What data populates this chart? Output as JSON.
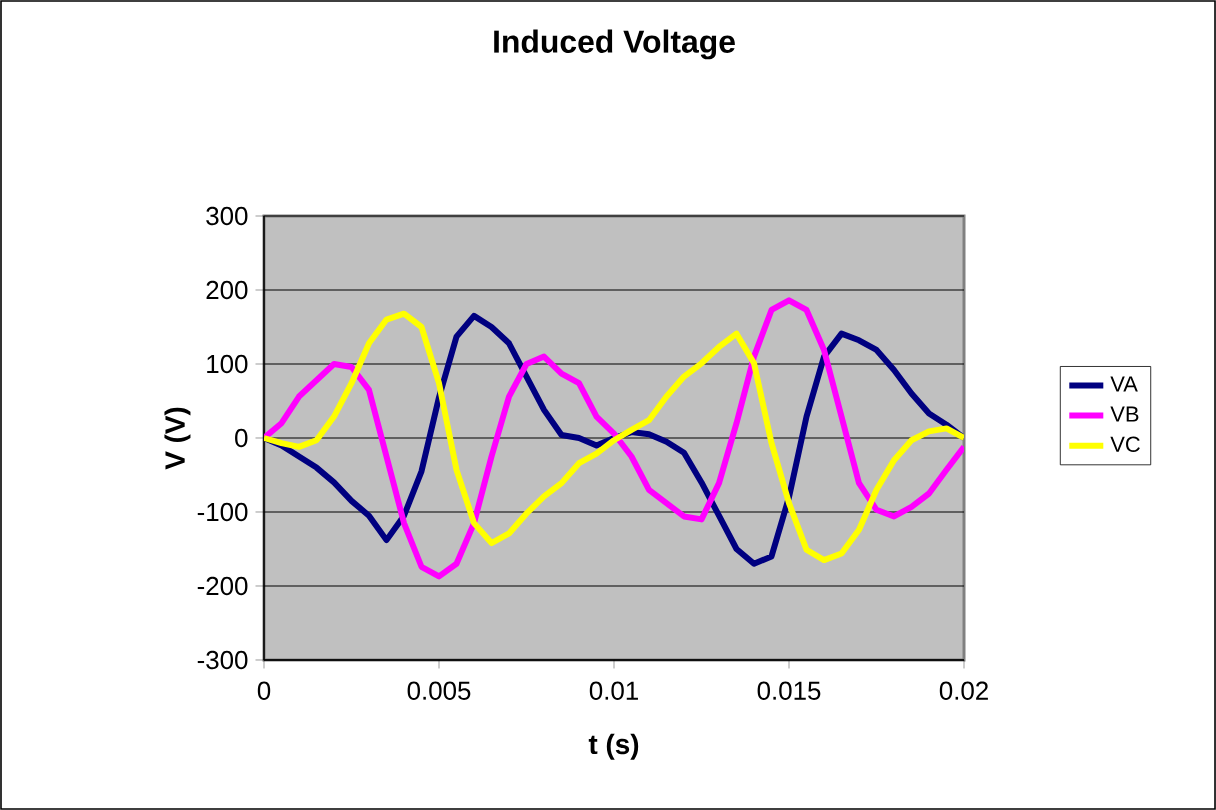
{
  "chart_data": {
    "type": "line",
    "title": "Induced Voltage",
    "xlabel": "t (s)",
    "ylabel": "V (V)",
    "x": [
      0,
      0.0005,
      0.001,
      0.0015,
      0.002,
      0.0025,
      0.003,
      0.0035,
      0.004,
      0.0045,
      0.005,
      0.0055,
      0.006,
      0.0065,
      0.007,
      0.0075,
      0.008,
      0.0085,
      0.009,
      0.0095,
      0.01,
      0.0105,
      0.011,
      0.0115,
      0.012,
      0.0125,
      0.013,
      0.0135,
      0.014,
      0.0145,
      0.015,
      0.0155,
      0.016,
      0.0165,
      0.017,
      0.0175,
      0.018,
      0.0185,
      0.019,
      0.0195,
      0.02
    ],
    "series": [
      {
        "name": "VA",
        "color": "#000080",
        "values": [
          0,
          -10,
          -25,
          -40,
          -60,
          -85,
          -105,
          -138,
          -105,
          -45,
          55,
          137,
          165,
          150,
          128,
          83,
          38,
          4,
          0,
          -10,
          0,
          8,
          5,
          -5,
          -20,
          -60,
          -105,
          -150,
          -170,
          -160,
          -80,
          29,
          110,
          141,
          132,
          119,
          92,
          60,
          33,
          18,
          0
        ]
      },
      {
        "name": "VB",
        "color": "#ff00ff",
        "values": [
          0,
          20,
          56,
          78,
          100,
          96,
          65,
          -25,
          -115,
          -174,
          -187,
          -170,
          -115,
          -25,
          56,
          100,
          110,
          87,
          74,
          29,
          6,
          -25,
          -70,
          -88,
          -106,
          -110,
          -61,
          20,
          110,
          173,
          186,
          173,
          119,
          29,
          -61,
          -97,
          -106,
          -93,
          -75,
          -43,
          -12
        ]
      },
      {
        "name": "VC",
        "color": "#ffff00",
        "values": [
          0,
          -7,
          -12,
          -3,
          29,
          74,
          128,
          160,
          168,
          150,
          74,
          -43,
          -115,
          -142,
          -129,
          -102,
          -79,
          -61,
          -34,
          -21,
          -3,
          11,
          24,
          56,
          83,
          101,
          123,
          141,
          101,
          -7,
          -88,
          -151,
          -165,
          -156,
          -124,
          -70,
          -30,
          -3,
          9,
          13,
          0
        ]
      }
    ],
    "xlim": [
      0,
      0.02
    ],
    "xticks": [
      0,
      0.005,
      0.01,
      0.015,
      0.02
    ],
    "ylim": [
      -300,
      300
    ],
    "yticks": [
      -300,
      -200,
      -100,
      0,
      100,
      200,
      300
    ],
    "grid": "y",
    "legend": "right",
    "marker": "none",
    "line_style": "solid"
  }
}
